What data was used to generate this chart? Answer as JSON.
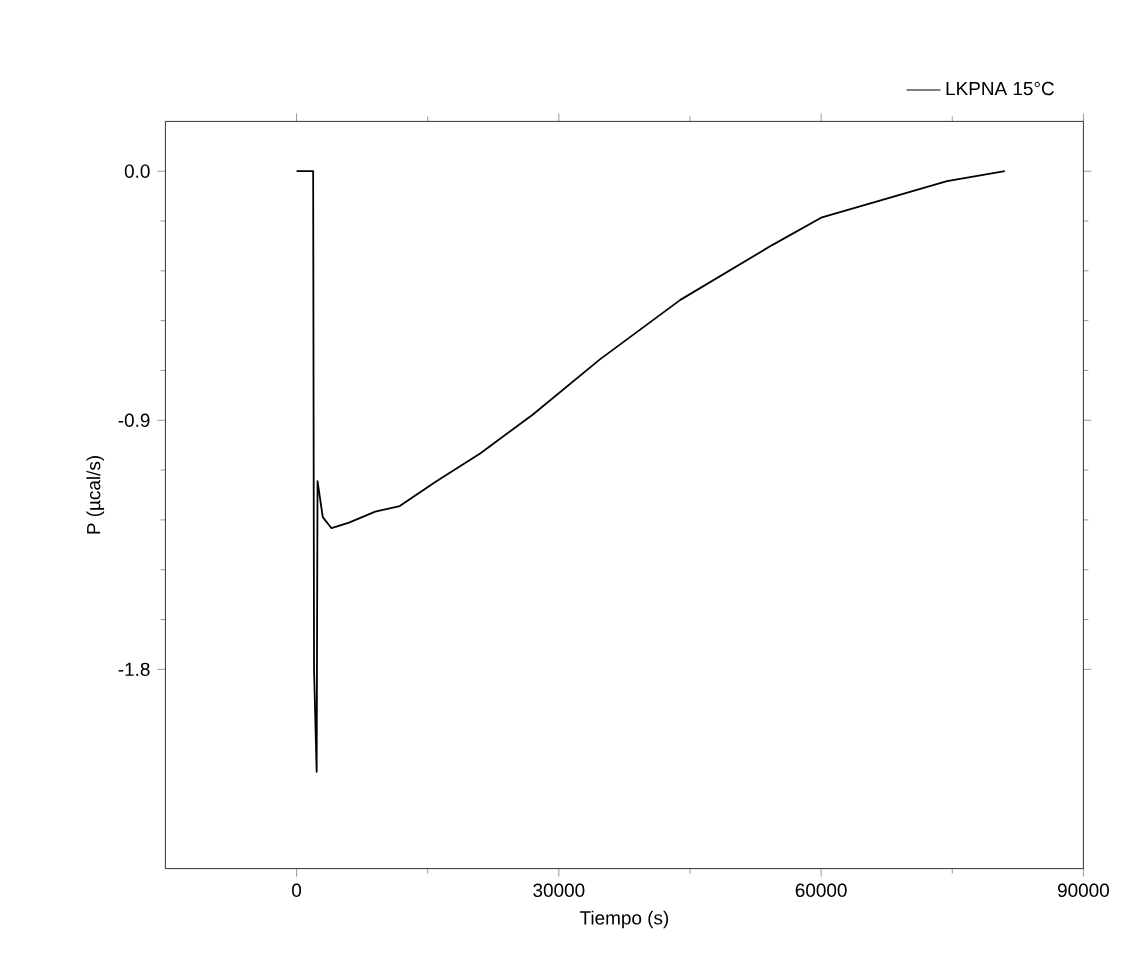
{
  "chart_data": {
    "type": "line",
    "xlabel": "Tiempo (s)",
    "ylabel": "P (µcal/s)",
    "legend": "top right",
    "xlim": [
      -15000,
      90000
    ],
    "xticks": [
      0,
      30000,
      60000,
      90000
    ],
    "ylim": [
      -2.52,
      0.18
    ],
    "yticks": [
      {
        "value": -1.8,
        "label": "-1.8"
      },
      {
        "value": -0.9,
        "label": "-0.9"
      },
      {
        "value": 0,
        "label": "0.0"
      }
    ],
    "series": [
      {
        "name": "LKPNA 15°C",
        "color": "#000000",
        "x": [
          0,
          1900,
          2000,
          2300,
          2400,
          3000,
          4000,
          6000,
          9000,
          11800,
          16000,
          21000,
          27000,
          34700,
          43900,
          54400,
          60000,
          67600,
          74400,
          81000
        ],
        "values": [
          0,
          0,
          -1.8,
          -2.17,
          -1.12,
          -1.25,
          -1.29,
          -1.27,
          -1.23,
          -1.21,
          -1.12,
          -1.02,
          -0.88,
          -0.68,
          -0.465,
          -0.267,
          -0.168,
          -0.098,
          -0.036,
          0
        ]
      }
    ]
  }
}
